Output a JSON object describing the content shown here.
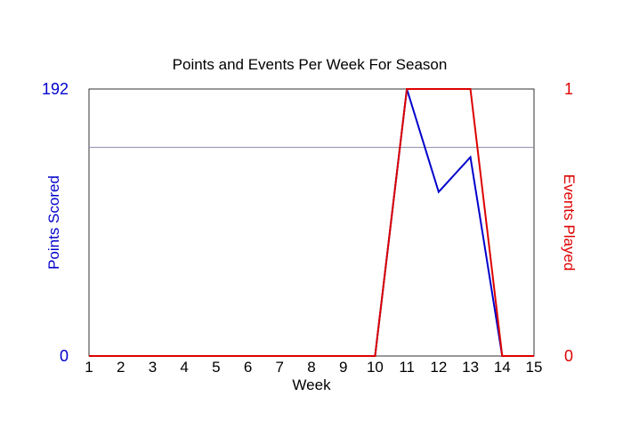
{
  "chart_data": {
    "type": "line",
    "title": "Points and Events Per Week For Season",
    "xlabel": "Week",
    "x": [
      1,
      2,
      3,
      4,
      5,
      6,
      7,
      8,
      9,
      10,
      11,
      12,
      13,
      14,
      15
    ],
    "xlim": [
      1,
      15
    ],
    "y_left": {
      "label": "Points Scored",
      "range": [
        0,
        192
      ],
      "ticks": [
        "0",
        "192"
      ],
      "color": "#0000cc"
    },
    "y_right": {
      "label": "Events Played",
      "range": [
        0,
        1
      ],
      "ticks": [
        "0",
        "1"
      ],
      "color": "#dd0000"
    },
    "reference_line": {
      "axis": "left",
      "value": 150,
      "color": "#8888aa"
    },
    "series": [
      {
        "axis": "left",
        "color": "#0000cc",
        "values": [
          0,
          0,
          0,
          0,
          0,
          0,
          0,
          0,
          0,
          0,
          192,
          118,
          143,
          0,
          0
        ]
      },
      {
        "axis": "right",
        "color": "#dd0000",
        "values": [
          0,
          0,
          0,
          0,
          0,
          0,
          0,
          0,
          0,
          0,
          1,
          1,
          1,
          0,
          0
        ]
      }
    ],
    "grid": false,
    "legend": "none"
  }
}
